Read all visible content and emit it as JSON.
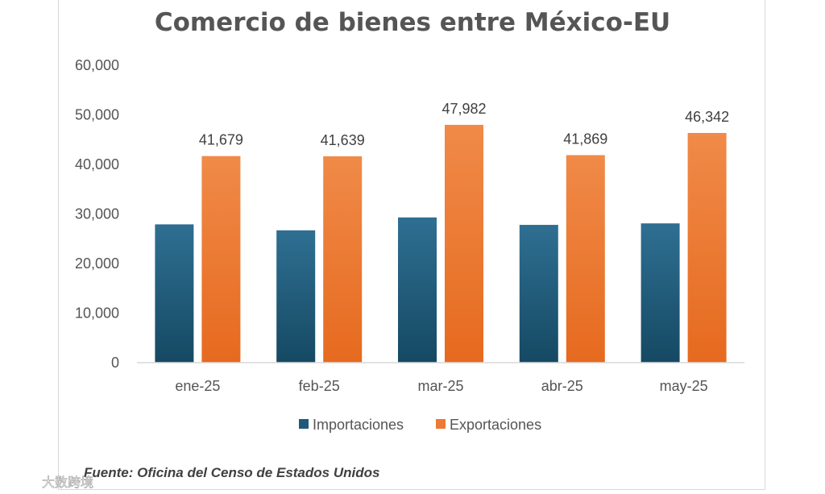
{
  "chart_data": {
    "type": "bar",
    "title": "Comercio de bienes entre México-EU",
    "categories": [
      "ene-25",
      "feb-25",
      "mar-25",
      "abr-25",
      "may-25"
    ],
    "series": [
      {
        "name": "Importaciones",
        "values": [
          27900,
          26700,
          29300,
          27800,
          28100
        ],
        "color": "#1f5a7a"
      },
      {
        "name": "Exportaciones",
        "values": [
          41679,
          41639,
          47982,
          41869,
          46342
        ],
        "color": "#ec7a34",
        "data_labels": [
          "41,679",
          "41,639",
          "47,982",
          "41,869",
          "46,342"
        ]
      }
    ],
    "y_ticks": [
      "0",
      "10,000",
      "20,000",
      "30,000",
      "40,000",
      "50,000",
      "60,000"
    ],
    "ylim": [
      0,
      60000
    ],
    "xlabel": "",
    "ylabel": "",
    "legend_position": "bottom",
    "grid": false
  },
  "source": "Fuente: Oficina del Censo de Estados Unidos",
  "watermark": "大数跨境"
}
